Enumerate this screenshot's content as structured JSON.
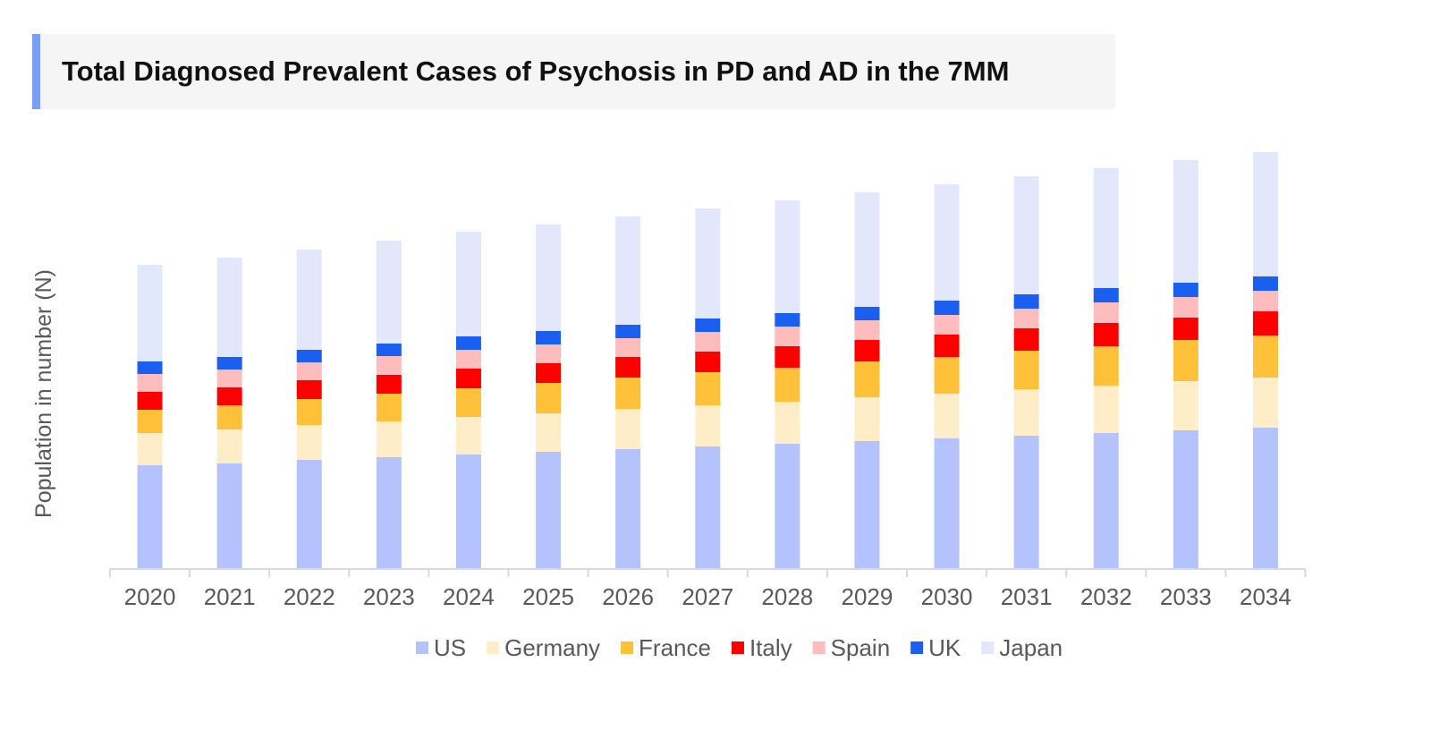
{
  "chart_data": {
    "type": "bar",
    "stacked": true,
    "title": "Total Diagnosed Prevalent Cases of Psychosis in PD and AD in the 7MM",
    "xlabel": "",
    "ylabel": "Population in number (N)",
    "y_tick_labels_shown": false,
    "ylim": [
      0,
      500
    ],
    "grid": false,
    "legend_position": "bottom",
    "categories": [
      "2020",
      "2021",
      "2022",
      "2023",
      "2024",
      "2025",
      "2026",
      "2027",
      "2028",
      "2029",
      "2030",
      "2031",
      "2032",
      "2033",
      "2034"
    ],
    "series": [
      {
        "name": "US",
        "color": "#b4c3fc",
        "values": [
          116,
          118,
          122,
          125,
          128,
          131,
          134,
          137,
          140,
          143,
          146,
          149,
          152,
          155,
          158
        ]
      },
      {
        "name": "Germany",
        "color": "#ffedc8",
        "values": [
          36,
          38,
          39,
          40,
          42,
          43,
          45,
          46,
          47,
          49,
          50,
          52,
          53,
          55,
          56
        ]
      },
      {
        "name": "France",
        "color": "#ffc03a",
        "values": [
          26,
          27,
          29,
          31,
          32,
          34,
          35,
          37,
          38,
          40,
          41,
          43,
          44,
          46,
          47
        ]
      },
      {
        "name": "Italy",
        "color": "#ff0000",
        "values": [
          20,
          20,
          21,
          21,
          22,
          22,
          23,
          23,
          24,
          24,
          25,
          25,
          26,
          25,
          27
        ]
      },
      {
        "name": "Spain",
        "color": "#ffbcbc",
        "values": [
          20,
          20,
          20,
          21,
          21,
          21,
          21,
          22,
          22,
          22,
          22,
          22,
          23,
          23,
          23
        ]
      },
      {
        "name": "UK",
        "color": "#1a5ff0",
        "values": [
          14,
          14,
          14,
          14,
          15,
          15,
          15,
          15,
          15,
          15,
          16,
          16,
          16,
          16,
          16
        ]
      },
      {
        "name": "Japan",
        "color": "#e2e7fc",
        "values": [
          108,
          111,
          112,
          115,
          117,
          119,
          121,
          123,
          126,
          128,
          130,
          132,
          134,
          137,
          139
        ]
      }
    ]
  }
}
